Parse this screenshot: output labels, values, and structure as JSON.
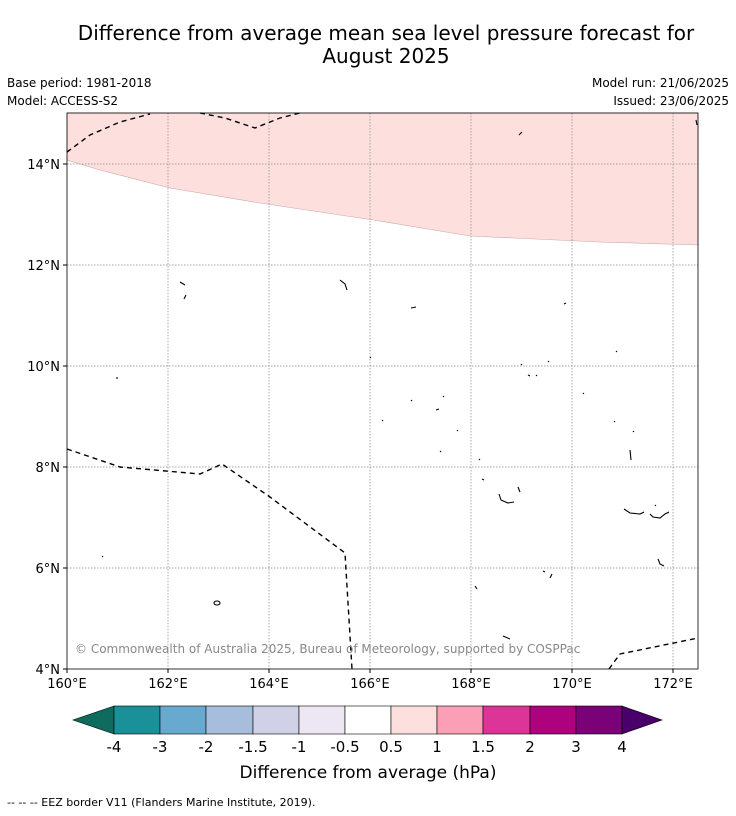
{
  "title_line1": "Difference from average mean sea level pressure forecast for",
  "title_line2": "August 2025",
  "info": {
    "base_period": "Base period: 1981-2018",
    "model": "Model: ACCESS-S2",
    "model_run": "Model run: 21/06/2025",
    "issued": "Issued: 23/06/2025"
  },
  "map": {
    "lat_labels": [
      "14°N",
      "12°N",
      "10°N",
      "8°N",
      "6°N",
      "4°N"
    ],
    "lon_labels": [
      "160°E",
      "162°E",
      "164°E",
      "166°E",
      "168°E",
      "170°E",
      "172°E"
    ],
    "copyright": "© Commonwealth of Australia 2025, Bureau of Meteorology, supported by COSPPac",
    "shading_color": "#fde0de"
  },
  "colorbar": {
    "labels": [
      "-4",
      "-3",
      "-2",
      "-1.5",
      "-1",
      "-0.5",
      "0.5",
      "1",
      "1.5",
      "2",
      "3",
      "4"
    ],
    "colors": [
      "#0e6b5e",
      "#1a9099",
      "#67a9cf",
      "#a6bddb",
      "#d0d1e6",
      "#ece7f2",
      "#ffffff",
      "#fde0dd",
      "#fa9fb5",
      "#dd3497",
      "#ae017e",
      "#7a0177",
      "#49006a"
    ],
    "title": "Difference from average (hPa)"
  },
  "footer": "-- -- -- EEZ border V11 (Flanders Marine Institute, 2019)."
}
